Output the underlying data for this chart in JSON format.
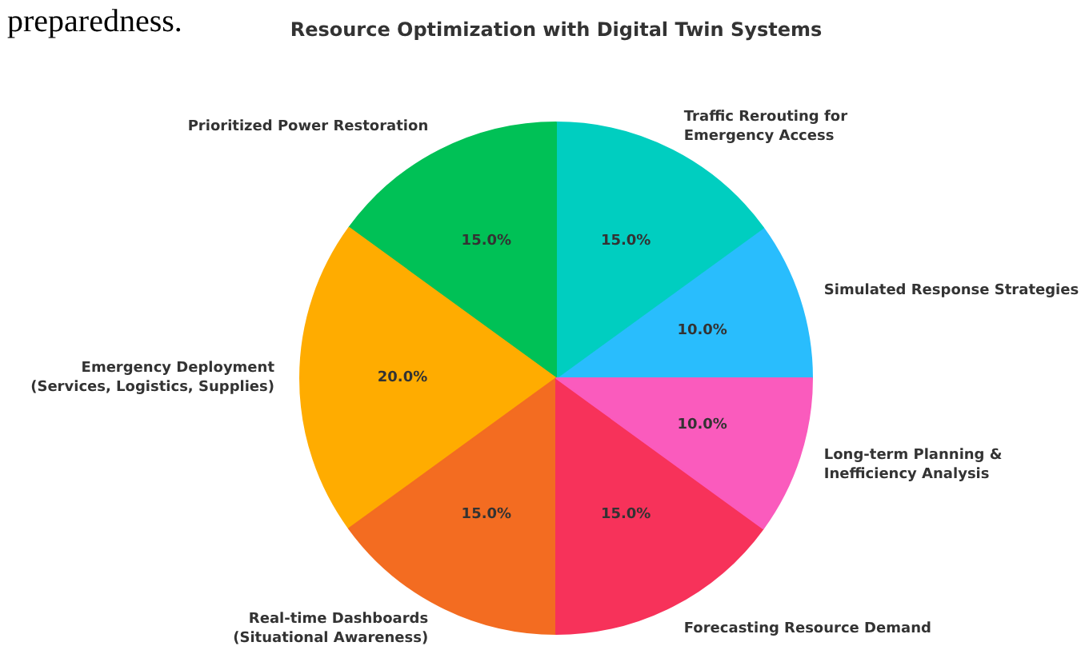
{
  "chart_data": {
    "type": "pie",
    "title": "Resource Optimization with Digital Twin Systems",
    "categories": [
      "Simulated Response Strategies",
      "Traffic Rerouting for\nEmergency Access",
      "Prioritized Power Restoration",
      "Emergency Deployment\n(Services, Logistics, Supplies)",
      "Real-time Dashboards\n(Situational Awareness)",
      "Forecasting Resource Demand",
      "Long-term Planning &\nInefficiency Analysis"
    ],
    "values": [
      10,
      15,
      15,
      20,
      15,
      15,
      10
    ],
    "value_labels": [
      "10.0%",
      "15.0%",
      "15.0%",
      "20.0%",
      "15.0%",
      "15.0%",
      "10.0%"
    ],
    "colors": [
      "#29bdfd",
      "#00cec0",
      "#00c156",
      "#ffac00",
      "#f36c21",
      "#f7325a",
      "#fa5bbd"
    ],
    "annotations": [
      "preparedness."
    ]
  }
}
